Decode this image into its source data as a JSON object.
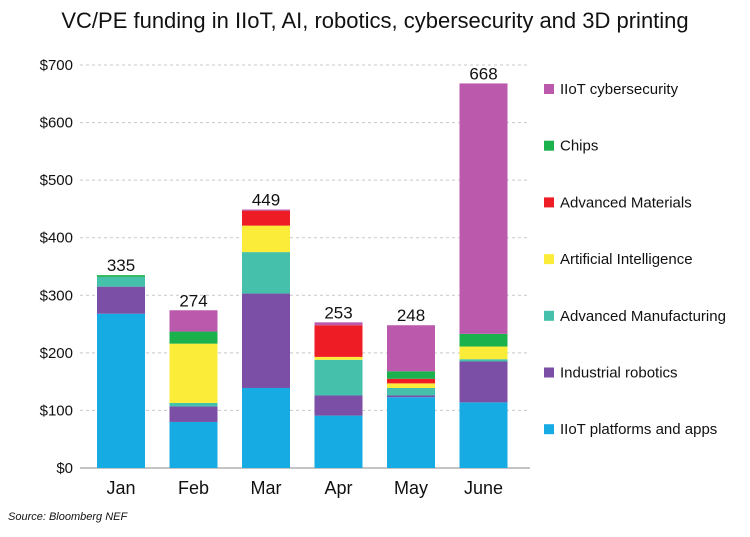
{
  "chart_data": {
    "type": "bar",
    "stacked": true,
    "title": "VC/PE funding in IIoT, AI, robotics, cybersecurity and 3D printing",
    "source": "Source: Bloomberg NEF",
    "categories": [
      "Jan",
      "Feb",
      "Mar",
      "Apr",
      "May",
      "June"
    ],
    "totals": [
      335,
      274,
      449,
      253,
      248,
      668
    ],
    "ylim": [
      0,
      700
    ],
    "yticks": [
      {
        "value": 0,
        "label": "$0"
      },
      {
        "value": 100,
        "label": "$100"
      },
      {
        "value": 200,
        "label": "$200"
      },
      {
        "value": 300,
        "label": "$300"
      },
      {
        "value": 400,
        "label": "$400"
      },
      {
        "value": 500,
        "label": "$500"
      },
      {
        "value": 600,
        "label": "$600"
      },
      {
        "value": 700,
        "label": "$700"
      }
    ],
    "grid": true,
    "legend_position": "right",
    "series": [
      {
        "name": "IIoT platforms and apps",
        "color": "#17ABE3",
        "values": [
          268,
          80,
          139,
          91,
          123,
          114
        ]
      },
      {
        "name": "Industrial robotics",
        "color": "#7B4FA6",
        "values": [
          47,
          27,
          164,
          35,
          3,
          71
        ]
      },
      {
        "name": "Advanced Manufacturing",
        "color": "#45C0AA",
        "values": [
          17,
          6,
          72,
          62,
          13,
          4
        ]
      },
      {
        "name": "Artificial Intelligence",
        "color": "#FBEC3A",
        "values": [
          0,
          103,
          46,
          5,
          8,
          22
        ]
      },
      {
        "name": "Advanced Materials",
        "color": "#EE1C25",
        "values": [
          0,
          0,
          26,
          55,
          8,
          0
        ]
      },
      {
        "name": "Chips",
        "color": "#1BB14C",
        "values": [
          3,
          21,
          0,
          0,
          13,
          22
        ]
      },
      {
        "name": "IIoT cybersecurity",
        "color": "#BB5AAC",
        "values": [
          0,
          37,
          2,
          5,
          80,
          435
        ]
      }
    ]
  }
}
